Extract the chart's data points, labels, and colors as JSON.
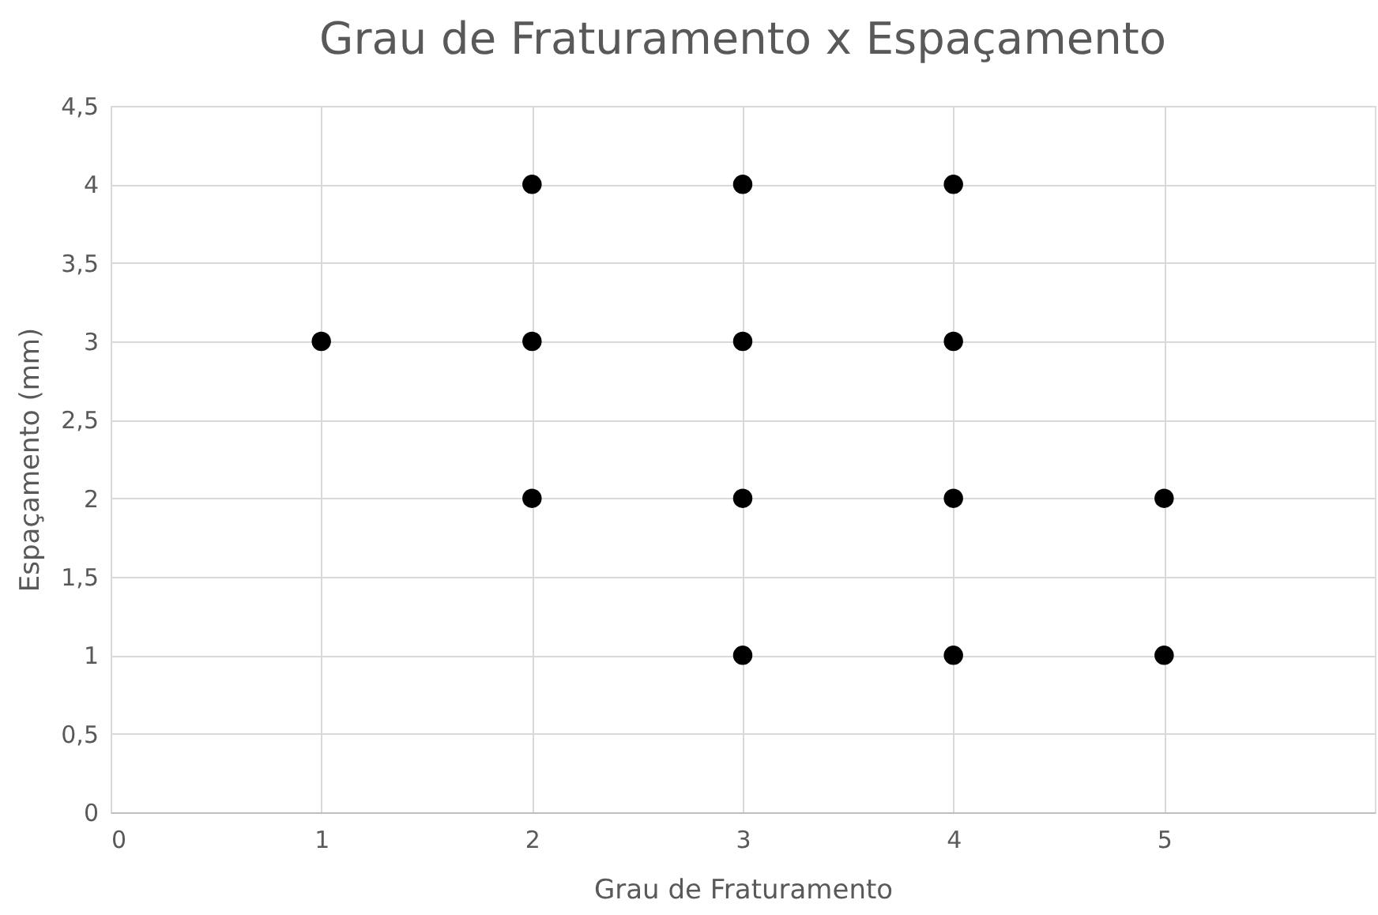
{
  "chart_data": {
    "type": "scatter",
    "title": "Grau de Fraturamento x Espaçamento",
    "xlabel": "Grau de Fraturamento",
    "ylabel": "Espaçamento (mm)",
    "x": [
      1,
      2,
      2,
      2,
      3,
      3,
      3,
      3,
      4,
      4,
      4,
      4,
      5,
      5
    ],
    "series": [
      {
        "color": "#000000",
        "values": [
          3,
          4,
          3,
          2,
          4,
          3,
          2,
          1,
          4,
          3,
          2,
          1,
          2,
          1
        ]
      }
    ],
    "xlim": [
      0,
      6
    ],
    "xticks": [
      0,
      1,
      2,
      3,
      4,
      5
    ],
    "ylim": [
      0,
      4.5
    ],
    "yticks": [
      0,
      {
        "value": 0.5,
        "label": "0,5"
      },
      1,
      {
        "value": 1.5,
        "label": "1,5"
      },
      2,
      {
        "value": 2.5,
        "label": "2,5"
      },
      3,
      {
        "value": 3.5,
        "label": "3,5"
      },
      4,
      {
        "value": 4.5,
        "label": "4,5"
      }
    ],
    "grid": true,
    "marker": "circle",
    "legend": false
  }
}
